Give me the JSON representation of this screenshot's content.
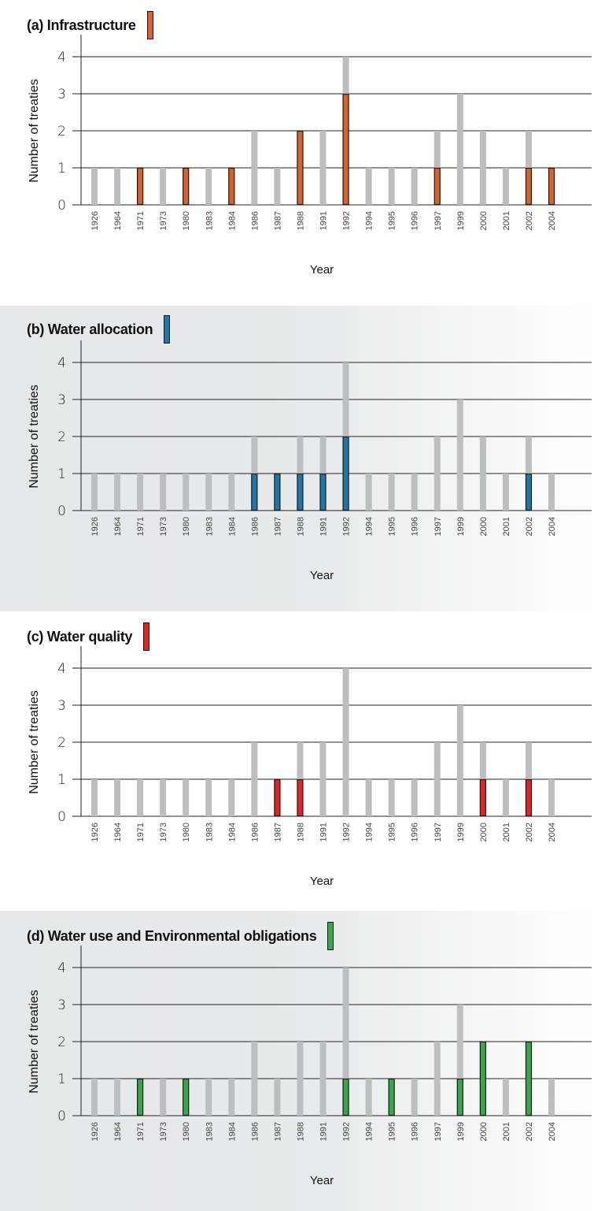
{
  "chart_data": [
    {
      "type": "bar",
      "title": "(a) Infrastructure",
      "xlabel": "Year",
      "ylabel": "Number of treaties",
      "ylim": [
        0,
        4
      ],
      "yticks": [
        0,
        1,
        2,
        3,
        4
      ],
      "highlight_color": "#d9622b",
      "total_color": "#bcbec0",
      "categories": [
        "1926",
        "1964",
        "1971",
        "1973",
        "1980",
        "1983",
        "1984",
        "1986",
        "1987",
        "1988",
        "1991",
        "1992",
        "1994",
        "1995",
        "1996",
        "1997",
        "1999",
        "2000",
        "2001",
        "2002",
        "2004"
      ],
      "series": [
        {
          "values": [
            1,
            1,
            1,
            1,
            1,
            1,
            1,
            2,
            1,
            2,
            2,
            4,
            1,
            1,
            1,
            2,
            3,
            2,
            1,
            2,
            1
          ]
        },
        {
          "values": [
            0,
            0,
            1,
            0,
            1,
            0,
            1,
            0,
            0,
            2,
            0,
            3,
            0,
            0,
            0,
            1,
            0,
            0,
            0,
            1,
            1
          ]
        }
      ]
    },
    {
      "type": "bar",
      "title": "(b) Water allocation",
      "xlabel": "Year",
      "ylabel": "Number of treaties",
      "ylim": [
        0,
        4
      ],
      "yticks": [
        0,
        1,
        2,
        3,
        4
      ],
      "highlight_color": "#1f77a8",
      "total_color": "#bcbec0",
      "categories": [
        "1926",
        "1964",
        "1971",
        "1973",
        "1980",
        "1983",
        "1984",
        "1986",
        "1987",
        "1988",
        "1991",
        "1992",
        "1994",
        "1995",
        "1996",
        "1997",
        "1999",
        "2000",
        "2001",
        "2002",
        "2004"
      ],
      "series": [
        {
          "values": [
            1,
            1,
            1,
            1,
            1,
            1,
            1,
            2,
            1,
            2,
            2,
            4,
            1,
            1,
            1,
            2,
            3,
            2,
            1,
            2,
            1
          ]
        },
        {
          "values": [
            0,
            0,
            0,
            0,
            0,
            0,
            0,
            1,
            1,
            1,
            1,
            2,
            0,
            0,
            0,
            0,
            0,
            0,
            0,
            1,
            0
          ]
        }
      ]
    },
    {
      "type": "bar",
      "title": "(c) Water quality",
      "xlabel": "Year",
      "ylabel": "Number of treaties",
      "ylim": [
        0,
        4
      ],
      "yticks": [
        0,
        1,
        2,
        3,
        4
      ],
      "highlight_color": "#e32228",
      "total_color": "#bcbec0",
      "categories": [
        "1926",
        "1964",
        "1971",
        "1973",
        "1980",
        "1983",
        "1984",
        "1986",
        "1987",
        "1988",
        "1991",
        "1992",
        "1994",
        "1995",
        "1996",
        "1997",
        "1999",
        "2000",
        "2001",
        "2002",
        "2004"
      ],
      "series": [
        {
          "values": [
            1,
            1,
            1,
            1,
            1,
            1,
            1,
            2,
            1,
            2,
            2,
            4,
            1,
            1,
            1,
            2,
            3,
            2,
            1,
            2,
            1
          ]
        },
        {
          "values": [
            0,
            0,
            0,
            0,
            0,
            0,
            0,
            0,
            1,
            1,
            0,
            0,
            0,
            0,
            0,
            0,
            0,
            1,
            0,
            1,
            0
          ]
        }
      ]
    },
    {
      "type": "bar",
      "title": "(d) Water use and Environmental obligations",
      "xlabel": "Year",
      "ylabel": "Number of treaties",
      "ylim": [
        0,
        4
      ],
      "yticks": [
        0,
        1,
        2,
        3,
        4
      ],
      "highlight_color": "#3aa64a",
      "total_color": "#bcbec0",
      "categories": [
        "1926",
        "1964",
        "1971",
        "1973",
        "1980",
        "1983",
        "1984",
        "1986",
        "1987",
        "1988",
        "1991",
        "1992",
        "1994",
        "1995",
        "1996",
        "1997",
        "1999",
        "2000",
        "2001",
        "2002",
        "2004"
      ],
      "series": [
        {
          "values": [
            1,
            1,
            1,
            1,
            1,
            1,
            1,
            2,
            1,
            2,
            2,
            4,
            1,
            1,
            1,
            2,
            3,
            2,
            1,
            2,
            1
          ]
        },
        {
          "values": [
            0,
            0,
            1,
            0,
            1,
            0,
            0,
            0,
            0,
            0,
            0,
            1,
            0,
            1,
            0,
            0,
            1,
            2,
            0,
            2,
            0
          ]
        }
      ]
    }
  ]
}
